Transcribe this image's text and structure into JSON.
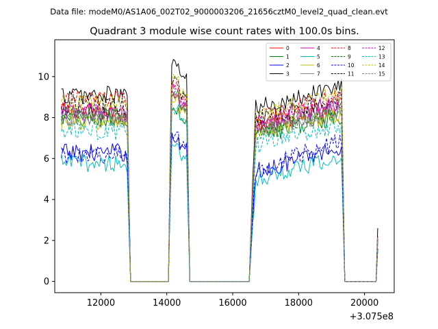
{
  "figure": {
    "suptitle": "Data file: modeM0/AS1A06_002T02_9000003206_21656cztM0_level2_quad_clean.evt"
  },
  "chart_data": {
    "type": "line",
    "title": "Quadrant 3 module wise count rates with 100.0s bins.",
    "xlabel": "",
    "ylabel": "",
    "x_offset_text": "+3.075e8",
    "xlim": [
      10600,
      20900
    ],
    "ylim": [
      -0.55,
      11.8
    ],
    "xticks": [
      12000,
      14000,
      16000,
      18000,
      20000
    ],
    "xtick_labels": [
      "12000",
      "14000",
      "16000",
      "18000",
      "20000"
    ],
    "yticks": [
      0,
      2,
      4,
      6,
      8,
      10
    ],
    "ytick_labels": [
      "0",
      "2",
      "4",
      "6",
      "8",
      "10"
    ],
    "legend_location": "upper right",
    "legend_columns": 4,
    "segments": [
      {
        "start": 10800,
        "end": 12800,
        "drop_end": 12900
      },
      {
        "start": 14100,
        "end": 14600,
        "drop_end": 14700
      },
      {
        "start": 16600,
        "end": 19300,
        "drop_end": 19400
      },
      {
        "start": 20400,
        "end": 20400,
        "drop_end": 20400
      }
    ],
    "gap_level": 0,
    "series": [
      {
        "name": "0",
        "color": "#ff0000",
        "dash": "solid",
        "level1": 8.3,
        "level2": 9.2,
        "level3": 7.6,
        "level3_end": 8.6,
        "last": 2.1
      },
      {
        "name": "1",
        "color": "#008000",
        "dash": "solid",
        "level1": 7.9,
        "level2": 8.3,
        "level3": 7.1,
        "level3_end": 8.1,
        "last": 2.0
      },
      {
        "name": "2",
        "color": "#0000ff",
        "dash": "solid",
        "level1": 6.3,
        "level2": 7.0,
        "level3": 5.3,
        "level3_end": 6.6,
        "last": 1.6
      },
      {
        "name": "3",
        "color": "#000000",
        "dash": "solid",
        "level1": 9.1,
        "level2": 10.7,
        "level3": 8.4,
        "level3_end": 9.6,
        "last": 2.6
      },
      {
        "name": "4",
        "color": "#bf00bf",
        "dash": "solid",
        "level1": 8.2,
        "level2": 9.3,
        "level3": 7.5,
        "level3_end": 8.7,
        "last": 2.1
      },
      {
        "name": "5",
        "color": "#00bfbf",
        "dash": "solid",
        "level1": 5.8,
        "level2": 6.5,
        "level3": 5.0,
        "level3_end": 6.0,
        "last": 1.5
      },
      {
        "name": "6",
        "color": "#bfbf00",
        "dash": "solid",
        "level1": 7.8,
        "level2": 8.9,
        "level3": 7.2,
        "level3_end": 8.2,
        "last": 2.0
      },
      {
        "name": "7",
        "color": "#808080",
        "dash": "solid",
        "level1": 8.0,
        "level2": 9.0,
        "level3": 7.3,
        "level3_end": 8.3,
        "last": 2.0
      },
      {
        "name": "8",
        "color": "#ff0000",
        "dash": "dashed",
        "level1": 8.9,
        "level2": 9.6,
        "level3": 7.8,
        "level3_end": 9.1,
        "last": 2.2
      },
      {
        "name": "9",
        "color": "#008000",
        "dash": "dashed",
        "level1": 8.1,
        "level2": 9.1,
        "level3": 7.3,
        "level3_end": 8.4,
        "last": 2.0
      },
      {
        "name": "10",
        "color": "#0000ff",
        "dash": "dashed",
        "level1": 6.2,
        "level2": 7.2,
        "level3": 5.4,
        "level3_end": 6.9,
        "last": 1.6
      },
      {
        "name": "11",
        "color": "#000000",
        "dash": "dashed",
        "level1": 8.6,
        "level2": 9.8,
        "level3": 7.9,
        "level3_end": 8.9,
        "last": 2.2
      },
      {
        "name": "12",
        "color": "#bf00bf",
        "dash": "dashed",
        "level1": 8.3,
        "level2": 9.4,
        "level3": 7.7,
        "level3_end": 8.8,
        "last": 2.1
      },
      {
        "name": "13",
        "color": "#00bfbf",
        "dash": "dashed",
        "level1": 7.3,
        "level2": 8.4,
        "level3": 6.6,
        "level3_end": 7.7,
        "last": 1.9
      },
      {
        "name": "14",
        "color": "#bfbf00",
        "dash": "dashed",
        "level1": 8.7,
        "level2": 9.9,
        "level3": 7.9,
        "level3_end": 9.3,
        "last": 2.2
      },
      {
        "name": "15",
        "color": "#808080",
        "dash": "dashed",
        "level1": 8.1,
        "level2": 9.1,
        "level3": 7.4,
        "level3_end": 8.5,
        "last": 2.0
      }
    ]
  }
}
